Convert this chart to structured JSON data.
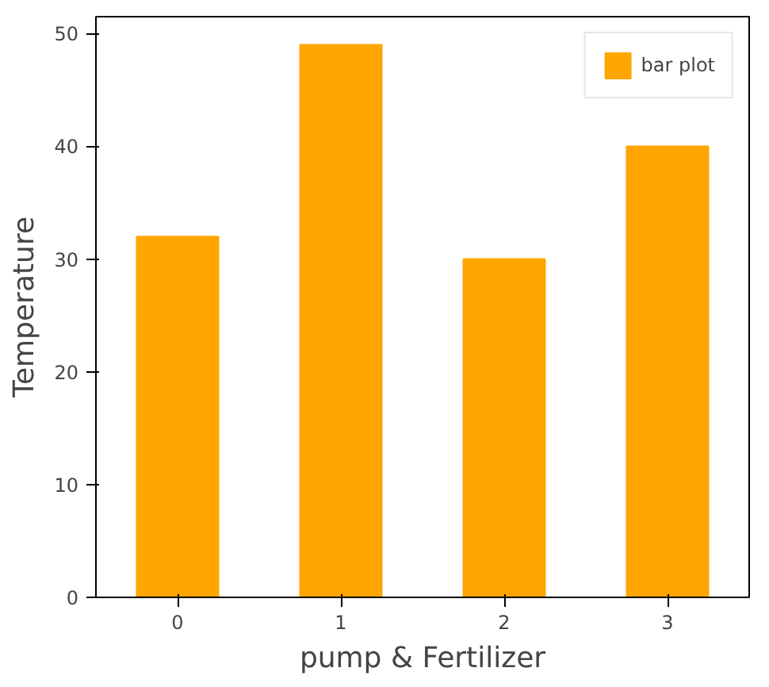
{
  "chart_data": {
    "type": "bar",
    "categories": [
      "0",
      "1",
      "2",
      "3"
    ],
    "series": [
      {
        "name": "bar plot",
        "color": "#ffa500",
        "values": [
          32,
          49,
          30,
          40
        ]
      }
    ],
    "xlabel": "pump & Fertilizer",
    "ylabel": "Temperature",
    "ylim": [
      0,
      51.5
    ],
    "yticks": [
      0,
      10,
      20,
      30,
      40,
      50
    ],
    "grid": false,
    "legend": "top right"
  }
}
